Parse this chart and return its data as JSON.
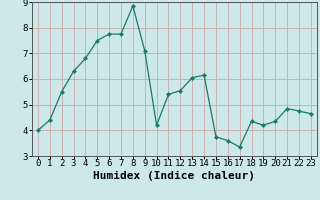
{
  "x": [
    0,
    1,
    2,
    3,
    4,
    5,
    6,
    7,
    8,
    9,
    10,
    11,
    12,
    13,
    14,
    15,
    16,
    17,
    18,
    19,
    20,
    21,
    22,
    23
  ],
  "y": [
    4.0,
    4.4,
    5.5,
    6.3,
    6.8,
    7.5,
    7.75,
    7.75,
    8.85,
    7.1,
    4.2,
    5.4,
    5.55,
    6.05,
    6.15,
    3.75,
    3.6,
    3.35,
    4.35,
    4.2,
    4.35,
    4.85,
    4.75,
    4.65
  ],
  "line_color": "#1a7a6e",
  "marker": "D",
  "marker_size": 2.0,
  "bg_color": "#cce8e8",
  "grid_color": "#c8a8a8",
  "xlabel": "Humidex (Indice chaleur)",
  "ylim": [
    3,
    9
  ],
  "xlim": [
    -0.5,
    23.5
  ],
  "yticks": [
    3,
    4,
    5,
    6,
    7,
    8,
    9
  ],
  "xticks": [
    0,
    1,
    2,
    3,
    4,
    5,
    6,
    7,
    8,
    9,
    10,
    11,
    12,
    13,
    14,
    15,
    16,
    17,
    18,
    19,
    20,
    21,
    22,
    23
  ],
  "tick_fontsize": 6.5,
  "xlabel_fontsize": 8,
  "line_width": 0.9
}
